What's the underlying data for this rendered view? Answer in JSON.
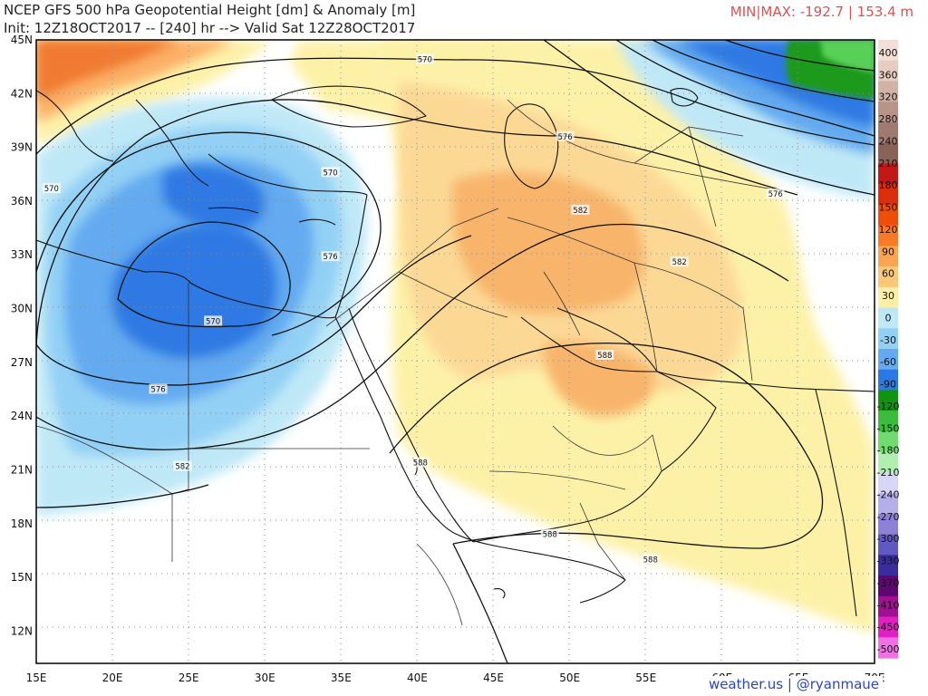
{
  "header": {
    "title": "NCEP GFS 500 hPa Geopotential Height [dm] & Anomaly [m]",
    "subtitle": "Init: 12Z18OCT2017 -- [240] hr --> Valid Sat 12Z28OCT2017",
    "minmax": "MIN|MAX: -192.7 | 153.4 m"
  },
  "footer": {
    "credit": "weather.us | @ryanmaue"
  },
  "map": {
    "lon_labels": [
      "15E",
      "20E",
      "25E",
      "30E",
      "35E",
      "40E",
      "45E",
      "50E",
      "55E",
      "60E",
      "65E",
      "70E"
    ],
    "lat_labels": [
      "45N",
      "42N",
      "39N",
      "36N",
      "33N",
      "30N",
      "27N",
      "24N",
      "21N",
      "18N",
      "15N",
      "12N"
    ],
    "contour_labels": [
      {
        "text": "570",
        "lon": 40.5,
        "lat": 43.9
      },
      {
        "text": "576",
        "lon": 49.7,
        "lat": 39.6
      },
      {
        "text": "570",
        "lon": 34.3,
        "lat": 37.6
      },
      {
        "text": "570",
        "lon": 16.0,
        "lat": 36.7
      },
      {
        "text": "582",
        "lon": 50.7,
        "lat": 35.5
      },
      {
        "text": "576",
        "lon": 63.5,
        "lat": 36.4
      },
      {
        "text": "576",
        "lon": 34.3,
        "lat": 32.9
      },
      {
        "text": "582",
        "lon": 57.2,
        "lat": 32.6
      },
      {
        "text": "570",
        "lon": 26.6,
        "lat": 29.3
      },
      {
        "text": "588",
        "lon": 52.3,
        "lat": 27.4
      },
      {
        "text": "576",
        "lon": 23.0,
        "lat": 25.5
      },
      {
        "text": "582",
        "lon": 24.6,
        "lat": 21.2
      },
      {
        "text": "588",
        "lon": 40.2,
        "lat": 21.4
      },
      {
        "text": "588",
        "lon": 48.7,
        "lat": 17.4
      },
      {
        "text": "588",
        "lon": 55.3,
        "lat": 16.0
      }
    ]
  },
  "colorbar": {
    "labels": [
      "400",
      "360",
      "320",
      "280",
      "240",
      "210",
      "180",
      "150",
      "120",
      "90",
      "60",
      "30",
      "0",
      "-30",
      "-60",
      "-90",
      "-120",
      "-150",
      "-180",
      "-210",
      "-240",
      "-270",
      "-300",
      "-330",
      "-370",
      "-410",
      "-450",
      "-500"
    ],
    "colors": [
      "#f2e0d8",
      "#e6ccc2",
      "#d2b2a6",
      "#b89488",
      "#a07a70",
      "#8a6258",
      "#c21818",
      "#dc2e0c",
      "#ee4e08",
      "#f87a26",
      "#fca452",
      "#fcc878",
      "#fdf0a6",
      "#bfe8f7",
      "#93d0f5",
      "#64aaf0",
      "#2d79e3",
      "#109410",
      "#3cbc3c",
      "#70dc70",
      "#b0efb0",
      "#d8d6f8",
      "#b6aeea",
      "#8c80d8",
      "#6258c4",
      "#3a2c9a",
      "#5c0870",
      "#a01092",
      "#e020c2",
      "#f070e6"
    ]
  }
}
